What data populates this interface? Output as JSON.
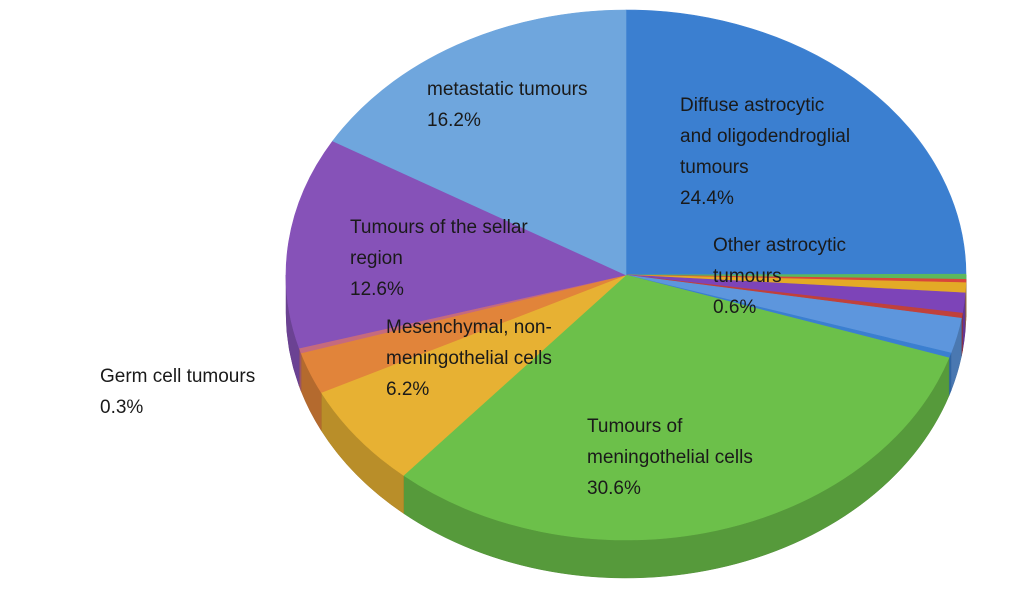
{
  "chart_data": {
    "type": "pie",
    "style": "3d-tilted",
    "start_angle_deg": 0,
    "direction": "clockwise",
    "slices": [
      {
        "label": "Diffuse astrocytic and oligodendroglial tumours",
        "pct_text": "24.4%",
        "value": 24.4,
        "color": "#3b7fd0",
        "labeled": true
      },
      {
        "label": "",
        "pct_text": "",
        "value": 0.3,
        "color": "#5cb85c",
        "labeled": false
      },
      {
        "label": "",
        "pct_text": "",
        "value": 0.2,
        "color": "#d9463a",
        "labeled": false
      },
      {
        "label": "Other astrocytic tumours",
        "pct_text": "0.6%",
        "value": 0.6,
        "color": "#e3aa26",
        "labeled": true
      },
      {
        "label": "",
        "pct_text": "",
        "value": 1.2,
        "color": "#7d44b8",
        "labeled": false
      },
      {
        "label": "",
        "pct_text": "",
        "value": 0.3,
        "color": "#c0413b",
        "labeled": false
      },
      {
        "label": "",
        "pct_text": "",
        "value": 2.1,
        "color": "#5d96dd",
        "labeled": false
      },
      {
        "label": "",
        "pct_text": "",
        "value": 0.3,
        "color": "#3b7fd0",
        "labeled": false
      },
      {
        "label": "Tumours of meningothelial cells",
        "pct_text": "30.6%",
        "value": 30.6,
        "color": "#6cc04a",
        "labeled": true
      },
      {
        "label": "Mesenchymal, non-meningothelial cells",
        "pct_text": "6.2%",
        "value": 6.2,
        "color": "#e7b133",
        "labeled": true
      },
      {
        "label": "",
        "pct_text": "",
        "value": 2.5,
        "color": "#e1843a",
        "labeled": false
      },
      {
        "label": "Germ cell tumours",
        "pct_text": "0.3%",
        "value": 0.3,
        "color": "#c56a7e",
        "labeled": true
      },
      {
        "label": "Tumours of the sellar region",
        "pct_text": "12.6%",
        "value": 12.6,
        "color": "#8652b8",
        "labeled": true
      },
      {
        "label": "metastatic tumours",
        "pct_text": "16.2%",
        "value": 16.2,
        "color": "#6fa6dd",
        "labeled": true
      }
    ],
    "labels": [
      {
        "lines": [
          "Diffuse astrocytic",
          "and oligodendroglial",
          "tumours",
          "24.4%"
        ]
      },
      {
        "lines": [
          "Other astrocytic",
          "tumours",
          "0.6%"
        ]
      },
      {
        "lines": [
          "Tumours of",
          "meningothelial cells",
          "30.6%"
        ]
      },
      {
        "lines": [
          "Mesenchymal, non-",
          "meningothelial cells",
          "6.2%"
        ]
      },
      {
        "lines": [
          "Germ cell tumours",
          "0.3%"
        ]
      },
      {
        "lines": [
          "Tumours of the sellar",
          "region",
          "12.6%"
        ]
      },
      {
        "lines": [
          "metastatic tumours",
          "16.2%"
        ]
      }
    ]
  }
}
